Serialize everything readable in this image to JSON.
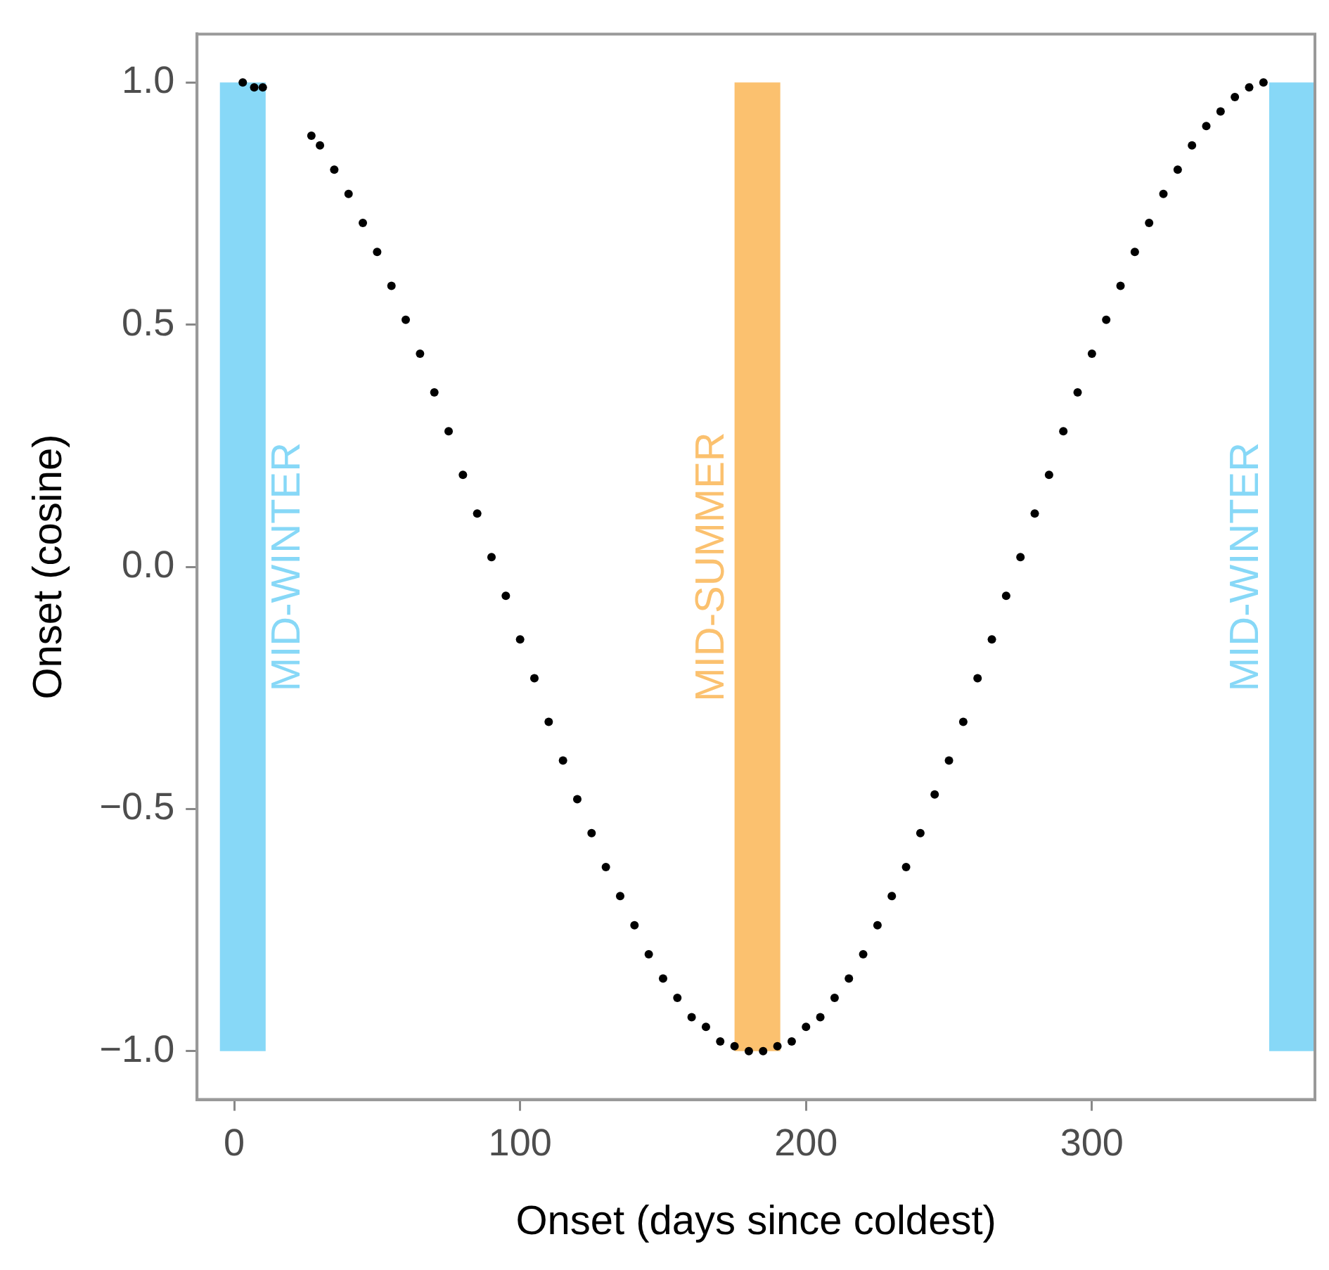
{
  "chart_data": {
    "type": "scatter",
    "xlabel": "Onset (days since coldest)",
    "ylabel": "Onset (cosine)",
    "xlim": [
      -13,
      378
    ],
    "ylim": [
      -1.1,
      1.1
    ],
    "xticks": [
      0,
      100,
      200,
      300
    ],
    "yticks": [
      {
        "value": -1,
        "label": "−1.0"
      },
      {
        "value": -0.5,
        "label": "−0.5"
      },
      {
        "value": 0,
        "label": "0.0"
      },
      {
        "value": 0.5,
        "label": "0.5"
      },
      {
        "value": 1,
        "label": "1.0"
      }
    ],
    "grid": false,
    "legend": false,
    "marker": "circle",
    "bands": [
      {
        "axis": "x",
        "from": -5,
        "to": 11,
        "label": "MID-WINTER",
        "color": "#87d8f7"
      },
      {
        "axis": "x",
        "from": 175,
        "to": 191,
        "label": "MID-SUMMER",
        "color": "#fbc16f"
      },
      {
        "axis": "x",
        "from": 362,
        "to": 378,
        "label": "MID-WINTER",
        "color": "#87d8f7"
      }
    ],
    "series": [
      {
        "color": "#000000",
        "x": [
          3,
          7,
          10,
          27,
          30,
          35,
          40,
          45,
          50,
          55,
          60,
          65,
          70,
          75,
          80,
          85,
          90,
          95,
          100,
          105,
          110,
          115,
          120,
          125,
          130,
          135,
          140,
          145,
          150,
          155,
          160,
          165,
          170,
          175,
          180,
          185,
          190,
          195,
          200,
          205,
          210,
          215,
          220,
          225,
          230,
          235,
          240,
          245,
          250,
          255,
          260,
          265,
          270,
          275,
          280,
          285,
          290,
          295,
          300,
          305,
          310,
          315,
          320,
          325,
          330,
          335,
          340,
          345,
          350,
          355,
          360
        ],
        "values": [
          1.0,
          0.99,
          0.99,
          0.89,
          0.87,
          0.82,
          0.77,
          0.71,
          0.65,
          0.58,
          0.51,
          0.44,
          0.36,
          0.28,
          0.19,
          0.11,
          0.02,
          -0.06,
          -0.15,
          -0.23,
          -0.32,
          -0.4,
          -0.48,
          -0.55,
          -0.62,
          -0.68,
          -0.74,
          -0.8,
          -0.85,
          -0.89,
          -0.93,
          -0.95,
          -0.98,
          -0.99,
          -1.0,
          -1.0,
          -0.99,
          -0.98,
          -0.95,
          -0.93,
          -0.89,
          -0.85,
          -0.8,
          -0.74,
          -0.68,
          -0.62,
          -0.55,
          -0.47,
          -0.4,
          -0.32,
          -0.23,
          -0.15,
          -0.06,
          0.02,
          0.11,
          0.19,
          0.28,
          0.36,
          0.44,
          0.51,
          0.58,
          0.65,
          0.71,
          0.77,
          0.82,
          0.87,
          0.91,
          0.94,
          0.97,
          0.99,
          1.0
        ]
      }
    ]
  }
}
